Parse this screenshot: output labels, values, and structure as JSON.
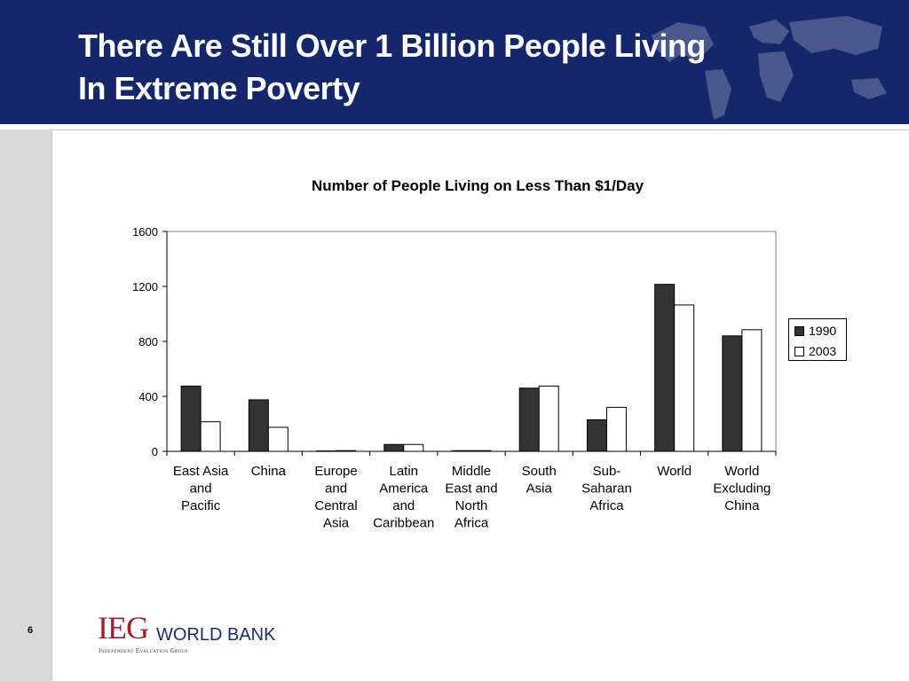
{
  "slide": {
    "title_lines": [
      "There Are Still Over 1 Billion People Living",
      "In Extreme Poverty"
    ],
    "page_number": "6"
  },
  "logo": {
    "ieg": "IEG",
    "world_bank": "WORLD BANK",
    "subtitle": "Independent Evaluation Group"
  },
  "colors": {
    "header_bg": "#14276b",
    "series_1990": "#333333",
    "series_2003": "#ffffff",
    "logo_red": "#a51d2d",
    "logo_blue": "#1b2f6b"
  },
  "chart_data": {
    "type": "bar",
    "title": "Number of People Living on Less Than $1/Day",
    "xlabel": "",
    "ylabel": "",
    "ylim": [
      0,
      1600
    ],
    "yticks": [
      0,
      400,
      800,
      1200,
      1600
    ],
    "grid": false,
    "legend_position": "right",
    "categories": [
      [
        "East Asia",
        "and",
        "Pacific"
      ],
      [
        "China"
      ],
      [
        "Europe",
        "and",
        "Central",
        "Asia"
      ],
      [
        "Latin",
        "America",
        "and",
        "Caribbean"
      ],
      [
        "Middle",
        "East and",
        "North",
        "Africa"
      ],
      [
        "South",
        "Asia"
      ],
      [
        "Sub-",
        "Saharan",
        "Africa"
      ],
      [
        "World"
      ],
      [
        "World",
        "Excluding",
        "China"
      ]
    ],
    "series": [
      {
        "name": "1990",
        "values": [
          475,
          375,
          3,
          50,
          5,
          460,
          230,
          1215,
          840
        ]
      },
      {
        "name": "2003",
        "values": [
          215,
          175,
          5,
          50,
          5,
          475,
          320,
          1065,
          885
        ]
      }
    ]
  }
}
